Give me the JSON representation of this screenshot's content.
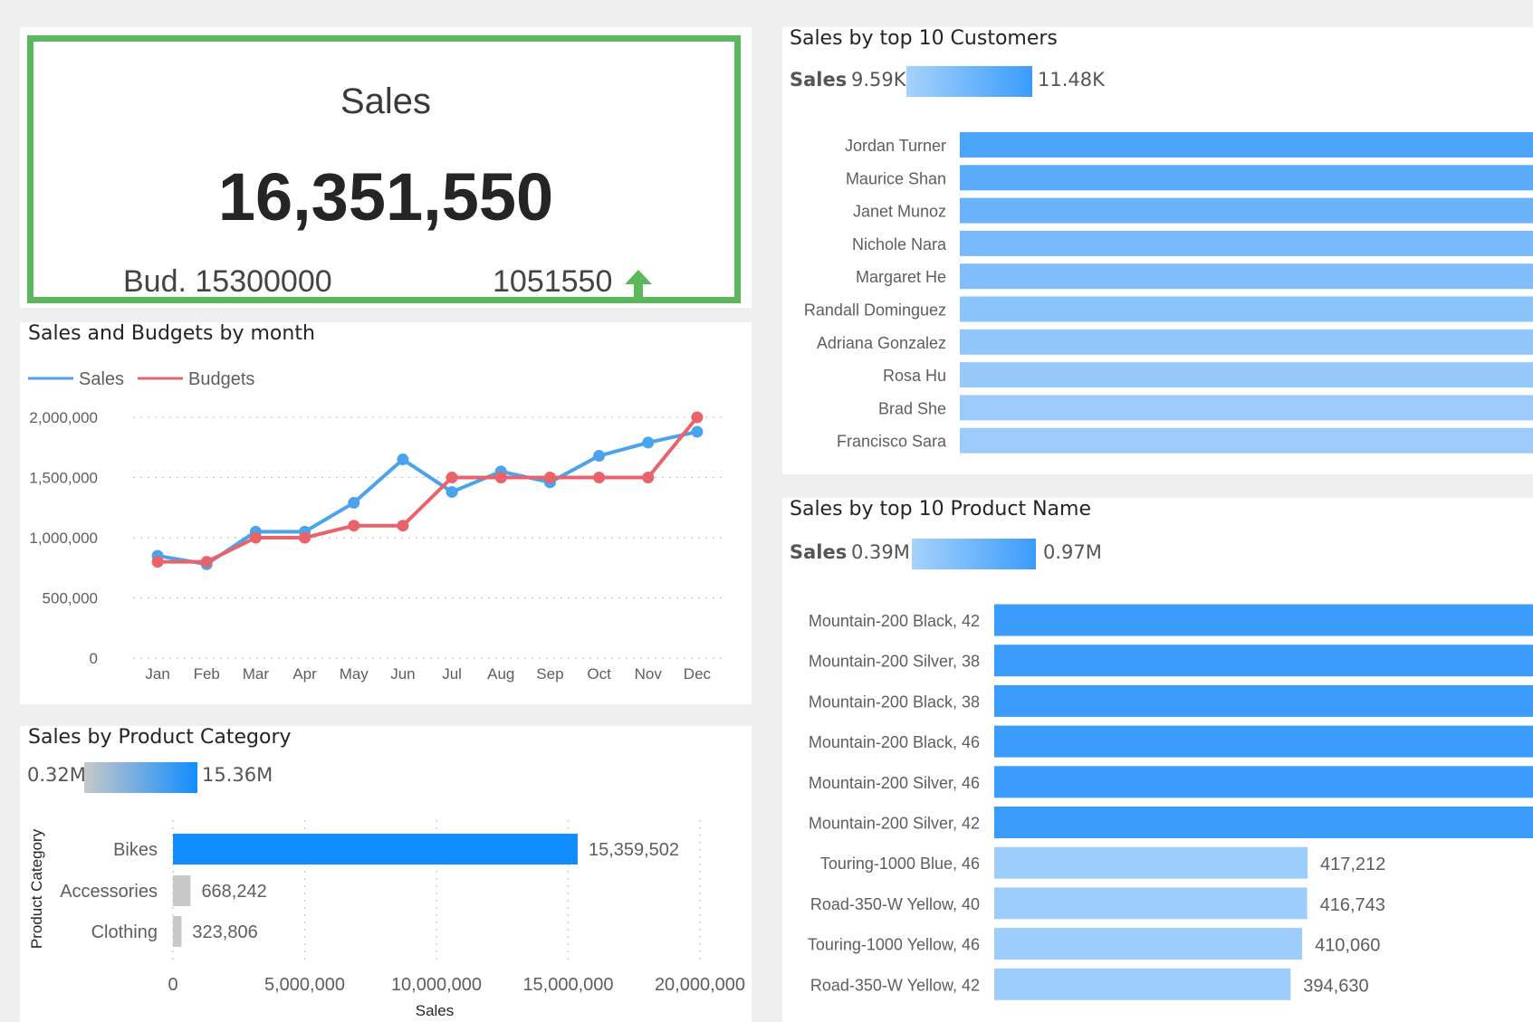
{
  "kpi": {
    "title": "Sales",
    "value": "16,351,550",
    "budget_label": "Bud. 15300000",
    "variance": "1051550",
    "trend_icon": "arrow-up-icon",
    "border_color": "#5cb85c",
    "arrow_color": "#5cb85c"
  },
  "line_chart": {
    "title": "Sales and Budgets by month",
    "legend": [
      "Sales",
      "Budgets"
    ]
  },
  "category_chart": {
    "title": "Sales by Product Category",
    "scale_min": "0.32M",
    "scale_max": "15.36M"
  },
  "customer_chart": {
    "title": "Sales by top 10 Customers",
    "scale_key": "Sales",
    "scale_min": "9.59K",
    "scale_max": "11.48K"
  },
  "product_chart": {
    "title": "Sales by top 10 Product Name",
    "scale_key": "Sales",
    "scale_min": "0.39M",
    "scale_max": "0.97M"
  },
  "chart_data": [
    {
      "type": "line",
      "title": "Sales and Budgets by month",
      "categories": [
        "Jan",
        "Feb",
        "Mar",
        "Apr",
        "May",
        "Jun",
        "Jul",
        "Aug",
        "Sep",
        "Oct",
        "Nov",
        "Dec"
      ],
      "series": [
        {
          "name": "Sales",
          "color": "#4ba3ec",
          "values": [
            850000,
            780000,
            1050000,
            1050000,
            1290000,
            1650000,
            1380000,
            1550000,
            1460000,
            1680000,
            1790000,
            1880000
          ]
        },
        {
          "name": "Budgets",
          "color": "#e8646a",
          "values": [
            800000,
            800000,
            1000000,
            1000000,
            1100000,
            1100000,
            1500000,
            1500000,
            1500000,
            1500000,
            1500000,
            2000000
          ]
        }
      ],
      "yticks": [
        "0",
        "500,000",
        "1,000,000",
        "1,500,000",
        "2,000,000"
      ],
      "ylim": [
        0,
        2000000
      ],
      "grid": true,
      "legend_position": "top-left"
    },
    {
      "type": "bar",
      "orientation": "horizontal",
      "title": "Sales by Product Category",
      "categories": [
        "Bikes",
        "Accessories",
        "Clothing"
      ],
      "values": [
        15359502,
        668242,
        323806
      ],
      "data_labels": [
        "15,359,502",
        "668,242",
        "323,806"
      ],
      "xticks": [
        "0",
        "5,000,000",
        "10,000,000",
        "15,000,000",
        "20,000,000"
      ],
      "xlim": [
        0,
        20000000
      ],
      "xlabel": "Sales",
      "ylabel": "Product Category",
      "colors": [
        "#118dff",
        "#c8c8c8",
        "#c8c8c8"
      ],
      "grid": true
    },
    {
      "type": "bar",
      "orientation": "horizontal",
      "title": "Sales by top 10 Customers",
      "categories": [
        "Jordan Turner",
        "Maurice Shan",
        "Janet Munoz",
        "Nichole Nara",
        "Margaret He",
        "Randall Dominguez",
        "Adriana Gonzalez",
        "Rosa Hu",
        "Brad She",
        "Francisco Sara"
      ],
      "colors": [
        "#4ba6fb",
        "#5aacfb",
        "#6ab3fb",
        "#77b9fb",
        "#82befb",
        "#8bc3fb",
        "#91c6fb",
        "#97c9fb",
        "#9ccbfb",
        "#9ccbfb"
      ]
    },
    {
      "type": "bar",
      "orientation": "horizontal",
      "title": "Sales by top 10 Product Name",
      "categories": [
        "Mountain-200 Black, 42",
        "Mountain-200 Silver, 38",
        "Mountain-200 Black, 38",
        "Mountain-200 Black, 46",
        "Mountain-200 Silver, 46",
        "Mountain-200 Silver, 42",
        "Touring-1000 Blue, 46",
        "Road-350-W Yellow, 40",
        "Touring-1000 Yellow, 46",
        "Road-350-W Yellow, 42"
      ],
      "values": [
        null,
        null,
        null,
        null,
        null,
        null,
        417212,
        416743,
        410060,
        394630
      ],
      "data_labels": [
        "",
        "",
        "",
        "",
        "",
        "",
        "417,212",
        "416,743",
        "410,060",
        "394,630"
      ],
      "colors": [
        "#3b9cfb",
        "#3b9cfb",
        "#3b9cfb",
        "#3b9cfb",
        "#3b9cfb",
        "#3b9cfb",
        "#9dcdfb",
        "#9dcdfb",
        "#9dcdfb",
        "#9dcdfb"
      ]
    }
  ]
}
